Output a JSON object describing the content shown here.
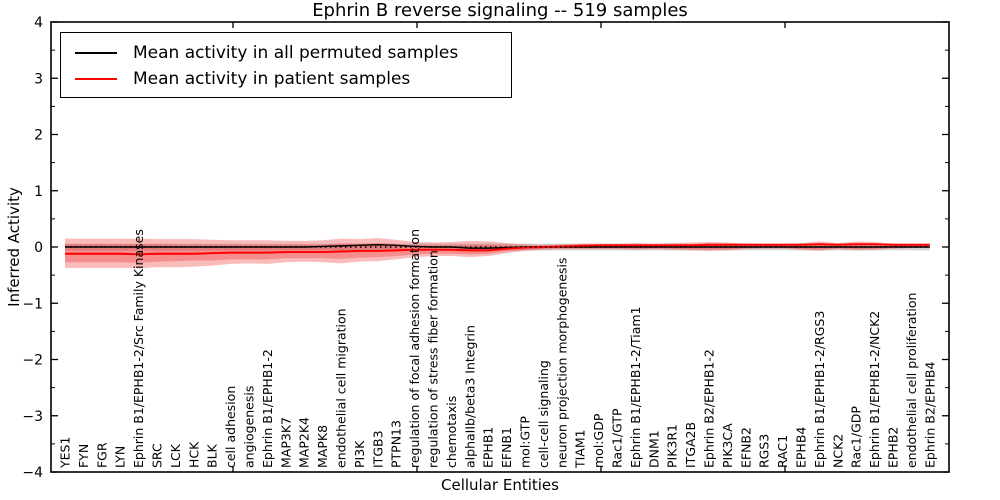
{
  "chart_data": {
    "type": "line",
    "title": "Ephrin B reverse signaling -- 519 samples",
    "xlabel": "Cellular Entities",
    "ylabel": "Inferred Activity",
    "ylim": [
      -4,
      4
    ],
    "yticks": [
      -4,
      -3,
      -2,
      -1,
      0,
      1,
      2,
      3,
      4
    ],
    "ytick_labels": [
      "−4",
      "−3",
      "−2",
      "−1",
      "0",
      "1",
      "2",
      "3",
      "4"
    ],
    "y_minor_step": 0.5,
    "x_major_tick_positions": [
      10,
      20,
      30,
      40
    ],
    "grid": false,
    "legend": {
      "position": "upper-left",
      "entries": [
        {
          "label": "Mean activity in all permuted samples",
          "color": "#000000"
        },
        {
          "label": "Mean activity in patient samples",
          "color": "#ff0000"
        }
      ]
    },
    "categories": [
      "YES1",
      "FYN",
      "FGR",
      "LYN",
      "Ephrin B1/EPHB1-2/Src Family Kinases",
      "SRC",
      "LCK",
      "HCK",
      "BLK",
      "cell adhesion",
      "angiogenesis",
      "Ephrin B1/EPHB1-2",
      "MAP3K7",
      "MAP2K4",
      "MAPK8",
      "endothelial cell migration",
      "PI3K",
      "ITGB3",
      "PTPN13",
      "regulation of focal adhesion formation",
      "regulation of stress fiber formation",
      "chemotaxis",
      "alphaIIb/beta3 Integrin",
      "EPHB1",
      "EFNB1",
      "mol:GTP",
      "cell-cell signaling",
      "neuron projection morphogenesis",
      "TIAM1",
      "mol:GDP",
      "Rac1/GTP",
      "Ephrin B1/EPHB1-2/Tiam1",
      "DNM1",
      "PIK3R1",
      "ITGA2B",
      "Ephrin B2/EPHB1-2",
      "PIK3CA",
      "EFNB2",
      "RGS3",
      "RAC1",
      "EPHB4",
      "Ephrin B1/EPHB1-2/RGS3",
      "NCK2",
      "Rac1/GDP",
      "Ephrin B1/EPHB1-2/NCK2",
      "EPHB2",
      "endothelial cell proliferation",
      "Ephrin B2/EPHB4"
    ],
    "series": [
      {
        "name": "Mean activity in all permuted samples",
        "color": "#000000",
        "linestyle": "solid",
        "width": 1.4,
        "values": [
          0,
          0,
          0,
          0,
          0,
          0,
          0,
          0,
          0,
          0,
          0,
          0,
          0,
          0,
          0.01,
          0.02,
          0.03,
          0.04,
          0.03,
          0.01,
          0,
          0,
          -0.02,
          -0.02,
          -0.01,
          0,
          0,
          0,
          0,
          0,
          0,
          0,
          0,
          0,
          0,
          0,
          0,
          0,
          0,
          0,
          0,
          0,
          0,
          0,
          0,
          0,
          0,
          0
        ]
      },
      {
        "name": "Mean activity in patient samples",
        "color": "#ff0000",
        "linestyle": "solid",
        "width": 1.9,
        "values": [
          -0.12,
          -0.12,
          -0.12,
          -0.12,
          -0.13,
          -0.12,
          -0.12,
          -0.12,
          -0.11,
          -0.1,
          -0.1,
          -0.1,
          -0.09,
          -0.09,
          -0.09,
          -0.08,
          -0.07,
          -0.07,
          -0.06,
          -0.05,
          -0.05,
          -0.05,
          -0.06,
          -0.06,
          -0.03,
          -0.01,
          0,
          0.01,
          0.02,
          0.03,
          0.03,
          0.03,
          0.03,
          0.03,
          0.03,
          0.04,
          0.04,
          0.04,
          0.04,
          0.04,
          0.04,
          0.05,
          0.04,
          0.05,
          0.05,
          0.04,
          0.04,
          0.04
        ]
      },
      {
        "name": "Zero reference",
        "color": "#000000",
        "linestyle": "dotted",
        "width": 1.5,
        "constant": 0
      }
    ],
    "bands": [
      {
        "name": "permuted-activity-band",
        "color": "#777777",
        "opacity": 0.3,
        "top": 0.06,
        "bottom": -0.06
      },
      {
        "name": "patient-activity-band-outer",
        "color": "#f03030",
        "opacity": 0.33,
        "top": [
          0.15,
          0.15,
          0.15,
          0.15,
          0.15,
          0.14,
          0.14,
          0.14,
          0.13,
          0.12,
          0.12,
          0.12,
          0.11,
          0.11,
          0.12,
          0.15,
          0.14,
          0.16,
          0.13,
          0.09,
          0.08,
          0.09,
          0.11,
          0.1,
          0.07,
          0.05,
          0.04,
          0.05,
          0.06,
          0.06,
          0.06,
          0.07,
          0.06,
          0.07,
          0.08,
          0.09,
          0.08,
          0.06,
          0.05,
          0.05,
          0.07,
          0.1,
          0.07,
          0.1,
          0.09,
          0.06,
          0.05,
          0.05
        ],
        "bottom": [
          -0.37,
          -0.37,
          -0.37,
          -0.37,
          -0.38,
          -0.36,
          -0.36,
          -0.35,
          -0.33,
          -0.3,
          -0.29,
          -0.3,
          -0.27,
          -0.26,
          -0.27,
          -0.29,
          -0.26,
          -0.25,
          -0.22,
          -0.18,
          -0.16,
          -0.16,
          -0.18,
          -0.16,
          -0.11,
          -0.07,
          -0.05,
          -0.04,
          -0.04,
          -0.04,
          -0.04,
          -0.05,
          -0.04,
          -0.05,
          -0.06,
          -0.07,
          -0.06,
          -0.04,
          -0.03,
          -0.03,
          -0.05,
          -0.07,
          -0.04,
          -0.06,
          -0.05,
          -0.03,
          -0.02,
          -0.02
        ]
      },
      {
        "name": "patient-activity-band-inner",
        "color": "#ee3030",
        "opacity": 0.33,
        "top": [
          0.05,
          0.05,
          0.05,
          0.05,
          0.05,
          0.05,
          0.04,
          0.04,
          0.04,
          0.04,
          0.04,
          0.04,
          0.04,
          0.04,
          0.04,
          0.06,
          0.06,
          0.07,
          0.05,
          0.03,
          0.03,
          0.03,
          0.04,
          0.04,
          0.03,
          0.02,
          0.02,
          0.03,
          0.04,
          0.04,
          0.04,
          0.05,
          0.04,
          0.05,
          0.05,
          0.06,
          0.05,
          0.05,
          0.04,
          0.04,
          0.05,
          0.07,
          0.05,
          0.07,
          0.06,
          0.05,
          0.04,
          0.04
        ],
        "bottom": [
          -0.27,
          -0.27,
          -0.27,
          -0.27,
          -0.28,
          -0.26,
          -0.25,
          -0.24,
          -0.24,
          -0.22,
          -0.22,
          -0.22,
          -0.2,
          -0.2,
          -0.2,
          -0.21,
          -0.19,
          -0.18,
          -0.16,
          -0.13,
          -0.12,
          -0.12,
          -0.13,
          -0.12,
          -0.08,
          -0.05,
          -0.03,
          -0.02,
          -0.02,
          -0.02,
          -0.02,
          -0.03,
          -0.02,
          -0.03,
          -0.04,
          -0.04,
          -0.04,
          -0.02,
          -0.01,
          -0.01,
          -0.03,
          -0.04,
          -0.02,
          -0.03,
          -0.03,
          -0.01,
          -0.01,
          -0.01
        ]
      }
    ]
  }
}
